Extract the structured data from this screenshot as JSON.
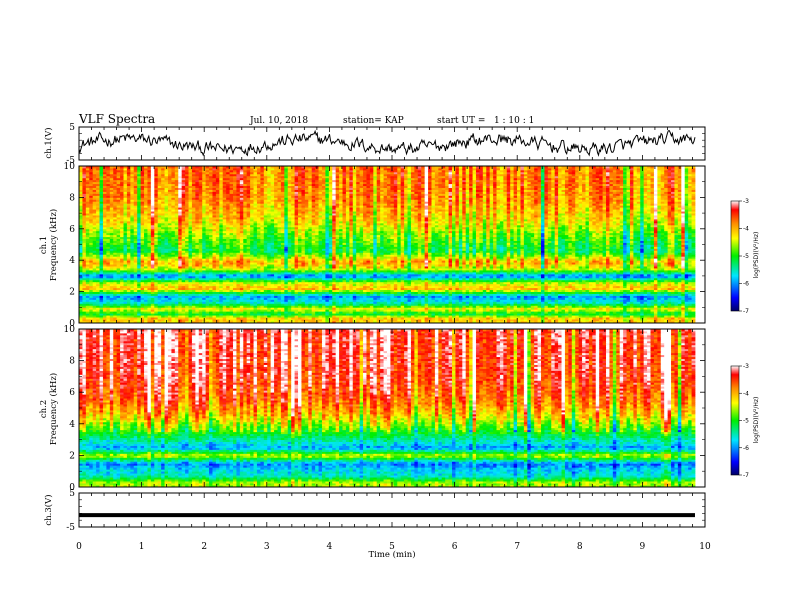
{
  "header": {
    "title": "VLF Spectra",
    "date": "Jul. 10, 2018",
    "station": "station= KAP",
    "start": "start UT =   1 : 10 : 1"
  },
  "chart_data": [
    {
      "type": "line",
      "panel": "ch1-waveform",
      "ylabel": "ch.1(V)",
      "ylim": [
        -5,
        5
      ],
      "yticks": [
        "5",
        "-5"
      ],
      "xlim": [
        0,
        10
      ],
      "series": [
        {
          "values_note_free": true
        }
      ]
    },
    {
      "type": "heatmap",
      "panel": "ch1-spectrogram",
      "ylabel": "ch.1",
      "ylabel2": "Frequency (kHz)",
      "ylim": [
        0,
        10
      ],
      "yticks": [
        "0",
        "2",
        "4",
        "6",
        "8",
        "10"
      ],
      "xlim": [
        0,
        10
      ],
      "colorbar": {
        "label": "log(PSD)(V²/Hz)",
        "ticks": [
          "-3",
          "-4",
          "-5",
          "-6",
          "-7"
        ],
        "range": [
          -7,
          -3
        ]
      },
      "profile": [
        {
          "f": 0.3,
          "level": -4.2
        },
        {
          "f": 0.6,
          "level": -5.2
        },
        {
          "f": 0.9,
          "level": -4.3
        },
        {
          "f": 1.3,
          "level": -5.6
        },
        {
          "f": 1.7,
          "level": -6.0
        },
        {
          "f": 2.2,
          "level": -4.1
        },
        {
          "f": 2.6,
          "level": -4.6
        },
        {
          "f": 3.0,
          "level": -6.2
        },
        {
          "f": 3.4,
          "level": -4.6
        },
        {
          "f": 3.9,
          "level": -4.0
        },
        {
          "f": 4.6,
          "level": -5.2
        },
        {
          "f": 5.5,
          "level": -4.8
        },
        {
          "f": 6.5,
          "level": -4.3
        },
        {
          "f": 8.0,
          "level": -3.9
        },
        {
          "f": 10.0,
          "level": -3.8
        }
      ]
    },
    {
      "type": "heatmap",
      "panel": "ch2-spectrogram",
      "ylabel": "ch.2",
      "ylabel2": "Frequency (kHz)",
      "ylim": [
        0,
        10
      ],
      "yticks": [
        "0",
        "2",
        "4",
        "6",
        "8",
        "10"
      ],
      "xlim": [
        0,
        10
      ],
      "colorbar": {
        "label": "log(PSD)(V²/Hz)",
        "ticks": [
          "-3",
          "-4",
          "-5",
          "-6",
          "-7"
        ],
        "range": [
          -7,
          -3
        ]
      },
      "profile": [
        {
          "f": 0.3,
          "level": -4.6
        },
        {
          "f": 0.7,
          "level": -5.6
        },
        {
          "f": 1.1,
          "level": -5.8
        },
        {
          "f": 1.5,
          "level": -6.1
        },
        {
          "f": 2.0,
          "level": -4.5
        },
        {
          "f": 2.5,
          "level": -6.0
        },
        {
          "f": 3.0,
          "level": -5.5
        },
        {
          "f": 3.6,
          "level": -4.9
        },
        {
          "f": 4.5,
          "level": -4.2
        },
        {
          "f": 5.5,
          "level": -3.7
        },
        {
          "f": 7.0,
          "level": -3.4
        },
        {
          "f": 10.0,
          "level": -3.3
        }
      ]
    },
    {
      "type": "line",
      "panel": "ch3-waveform",
      "ylabel": "ch.3(V)",
      "ylim": [
        -5,
        5
      ],
      "yticks": [
        "5",
        "-5"
      ],
      "xlim": [
        0,
        10
      ],
      "series": [
        {
          "values": [
            -1.5,
            -1.5
          ]
        }
      ]
    }
  ],
  "xaxis": {
    "label": "Time (min)",
    "ticks": [
      "0",
      "1",
      "2",
      "3",
      "4",
      "5",
      "6",
      "7",
      "8",
      "9",
      "10"
    ]
  }
}
